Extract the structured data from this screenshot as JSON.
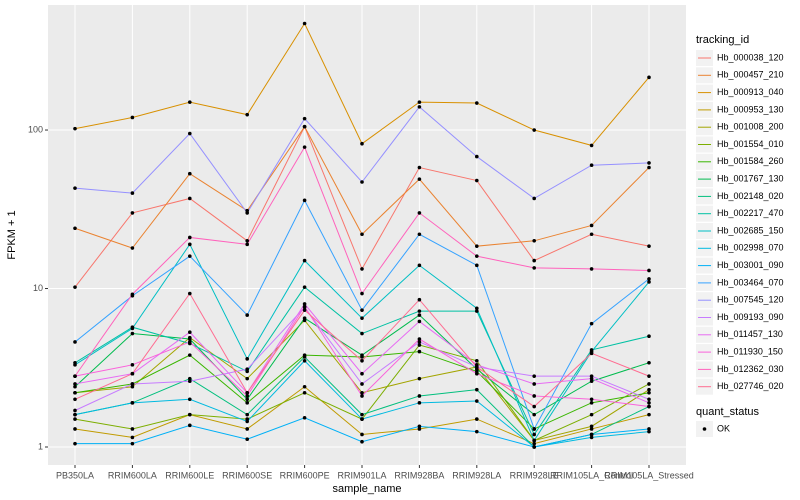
{
  "chart_data": {
    "type": "line",
    "xlabel": "sample_name",
    "ylabel": "FPKM + 1",
    "categories": [
      "PB350LA",
      "RRIM600LA",
      "RRIM600LE",
      "RRIM600SE",
      "RRIM600PE",
      "RRIM901LA",
      "RRIM928BA",
      "RRIM928LA",
      "RRIM928LE",
      "RRIM105LA_Control",
      "RRIM105LA_Stressed"
    ],
    "ylim": [
      0.77,
      615
    ],
    "yticks": [
      1,
      10,
      100
    ],
    "log_y": true,
    "grid": true,
    "legend_title": "tracking_id",
    "legend_position": "right",
    "point_legend_title": "quant_status",
    "point_legend_label": "OK",
    "point_color": "#000000",
    "series": [
      {
        "name": "Hb_000038_120",
        "color": "#F8766D",
        "values": [
          10.2,
          30,
          37,
          20,
          105,
          13.3,
          58,
          48,
          15,
          22,
          18.5
        ]
      },
      {
        "name": "Hb_000457_210",
        "color": "#EA8331",
        "values": [
          24,
          18,
          53,
          31,
          105,
          22,
          49,
          18.5,
          20,
          25,
          58
        ]
      },
      {
        "name": "Hb_000913_040",
        "color": "#D89000",
        "values": [
          102,
          120,
          150,
          125,
          470,
          82,
          150,
          148,
          100,
          80,
          215
        ]
      },
      {
        "name": "Hb_000953_130",
        "color": "#C09B00",
        "values": [
          1.3,
          1.15,
          1.6,
          1.3,
          2.4,
          1.2,
          1.3,
          1.5,
          1.05,
          1.3,
          1.6
        ]
      },
      {
        "name": "Hb_001008_200",
        "color": "#A3A500",
        "values": [
          2.2,
          2.4,
          4.9,
          2.7,
          6.3,
          2.2,
          2.7,
          3.2,
          1.1,
          1.35,
          2.3
        ]
      },
      {
        "name": "Hb_001554_010",
        "color": "#7CAE00",
        "values": [
          1.5,
          1.3,
          1.6,
          1.5,
          2.2,
          1.5,
          4.4,
          3.5,
          1.1,
          1.6,
          2.5
        ]
      },
      {
        "name": "Hb_001584_260",
        "color": "#39B600",
        "values": [
          2.2,
          2.5,
          3.8,
          1.9,
          3.8,
          3.7,
          4.0,
          3.0,
          1.3,
          1.9,
          2.2
        ]
      },
      {
        "name": "Hb_001767_130",
        "color": "#00BB4E",
        "values": [
          2.4,
          5.2,
          4.8,
          2.0,
          6.5,
          3.8,
          6.8,
          3.1,
          1.6,
          2.6,
          3.4
        ]
      },
      {
        "name": "Hb_002148_020",
        "color": "#00BF7D",
        "values": [
          1.6,
          1.9,
          2.7,
          1.6,
          3.7,
          1.6,
          2.1,
          2.3,
          1.0,
          1.2,
          1.8
        ]
      },
      {
        "name": "Hb_002217_470",
        "color": "#00C1A3",
        "values": [
          3.4,
          5.7,
          4.5,
          3.0,
          10.2,
          5.2,
          7.2,
          7.2,
          1.2,
          4.1,
          5.0
        ]
      },
      {
        "name": "Hb_002685_150",
        "color": "#00BFC4",
        "values": [
          3.3,
          5.6,
          19,
          3.6,
          15,
          6.5,
          14,
          7.5,
          1.1,
          4.0,
          11
        ]
      },
      {
        "name": "Hb_002998_070",
        "color": "#00BAE0",
        "values": [
          1.6,
          1.9,
          2.0,
          1.45,
          3.5,
          1.5,
          1.9,
          1.95,
          1.0,
          1.15,
          1.25
        ]
      },
      {
        "name": "Hb_003001_090",
        "color": "#00B0F6",
        "values": [
          1.05,
          1.05,
          1.37,
          1.12,
          1.53,
          1.08,
          1.35,
          1.25,
          1.0,
          1.2,
          1.3
        ]
      },
      {
        "name": "Hb_003464_070",
        "color": "#35A2FF",
        "values": [
          4.6,
          9,
          16,
          6.8,
          36,
          7.3,
          22,
          14,
          1.3,
          6,
          11.5
        ]
      },
      {
        "name": "Hb_007545_120",
        "color": "#9590FF",
        "values": [
          43,
          40,
          95,
          30,
          118,
          47,
          140,
          68,
          37,
          60,
          62
        ]
      },
      {
        "name": "Hb_009193_090",
        "color": "#C77CFF",
        "values": [
          1.7,
          2.5,
          2.6,
          3.1,
          7.6,
          2.5,
          4.6,
          3.2,
          2.8,
          2.8,
          2.0
        ]
      },
      {
        "name": "Hb_011457_130",
        "color": "#E76BF3",
        "values": [
          2.5,
          2.9,
          5.3,
          2.2,
          8.0,
          2.9,
          6.2,
          3.3,
          2.5,
          2.7,
          1.9
        ]
      },
      {
        "name": "Hb_011930_150",
        "color": "#FA62DB",
        "values": [
          2.8,
          3.3,
          4.6,
          2.1,
          7.7,
          2.1,
          4.8,
          2.9,
          2.1,
          2.0,
          1.8
        ]
      },
      {
        "name": "Hb_012362_030",
        "color": "#FF62BC",
        "values": [
          2.8,
          9.2,
          21,
          19,
          78,
          9.3,
          30,
          16,
          13.5,
          13.3,
          13
        ]
      },
      {
        "name": "Hb_027746_020",
        "color": "#FF6C91",
        "values": [
          2.0,
          2.9,
          9.3,
          2.2,
          7.3,
          3.5,
          8.5,
          3.2,
          1.8,
          3.9,
          2.8
        ]
      }
    ]
  }
}
